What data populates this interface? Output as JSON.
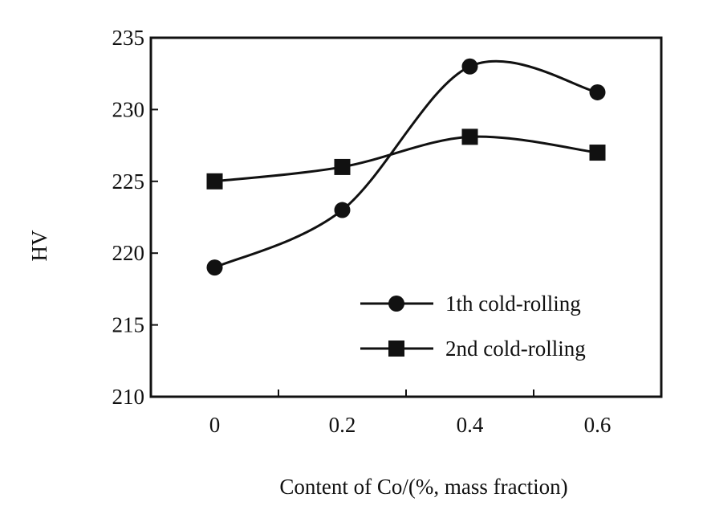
{
  "chart_data": {
    "type": "line",
    "xlabel": "Content of Co/(%, mass fraction)",
    "ylabel": "HV",
    "x": [
      0,
      0.2,
      0.4,
      0.6
    ],
    "x_ticks": [
      "0",
      "0.2",
      "0.4",
      "0.6"
    ],
    "xlim": [
      -0.1,
      0.7
    ],
    "ylim": [
      210,
      235
    ],
    "y_ticks": [
      "210",
      "215",
      "220",
      "225",
      "230",
      "235"
    ],
    "grid": false,
    "legend_position": "bottom-right",
    "series": [
      {
        "name": "1th cold-rolling",
        "marker": "circle",
        "values": [
          219,
          223,
          233,
          231.2
        ]
      },
      {
        "name": "2nd cold-rolling",
        "marker": "square",
        "values": [
          225,
          226,
          228.1,
          227
        ]
      }
    ]
  }
}
